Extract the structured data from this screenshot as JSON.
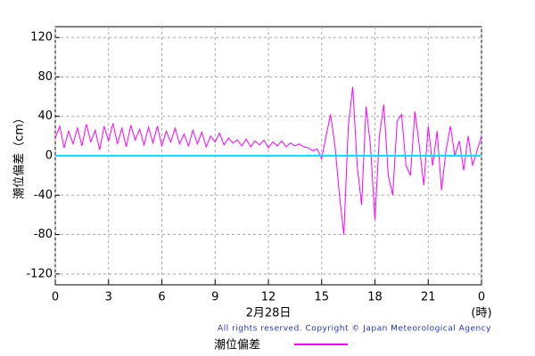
{
  "chart_data": {
    "type": "line",
    "y_label": "潮位偏差（cm）",
    "x_label": "2月28日",
    "x_unit": "(時)",
    "copyright": "All rights reserved. Copyright © Japan Meteorological Agency",
    "xlim": [
      0,
      24
    ],
    "xticks": [
      0,
      3,
      6,
      9,
      12,
      15,
      18,
      21,
      {
        "value": 24,
        "label": "0"
      }
    ],
    "ylim": [
      -131,
      131
    ],
    "yticks": [
      -120,
      -80,
      -40,
      0,
      40,
      80,
      120
    ],
    "grid": true,
    "reference_line": {
      "value": 0,
      "color": "#00e5ff"
    },
    "x": [
      0,
      0.25,
      0.5,
      0.75,
      1,
      1.25,
      1.5,
      1.75,
      2,
      2.25,
      2.5,
      2.75,
      3,
      3.25,
      3.5,
      3.75,
      4,
      4.25,
      4.5,
      4.75,
      5,
      5.25,
      5.5,
      5.75,
      6,
      6.25,
      6.5,
      6.75,
      7,
      7.25,
      7.5,
      7.75,
      8,
      8.25,
      8.5,
      8.75,
      9,
      9.25,
      9.5,
      9.75,
      10,
      10.25,
      10.5,
      10.75,
      11,
      11.25,
      11.5,
      11.75,
      12,
      12.25,
      12.5,
      12.75,
      13,
      13.25,
      13.5,
      13.75,
      14,
      14.25,
      14.5,
      14.75,
      15,
      15.25,
      15.5,
      15.75,
      16,
      16.25,
      16.5,
      16.75,
      17,
      17.25,
      17.5,
      17.75,
      18,
      18.25,
      18.5,
      18.75,
      19,
      19.25,
      19.5,
      19.75,
      20,
      20.25,
      20.5,
      20.75,
      21,
      21.25,
      21.5,
      21.75,
      22,
      22.25,
      22.5,
      22.75,
      23,
      23.25,
      23.5,
      23.75,
      24
    ],
    "series": [
      {
        "name": "潮位偏差",
        "color": "#ff00ff",
        "values": [
          18,
          30,
          8,
          25,
          12,
          28,
          10,
          32,
          14,
          26,
          6,
          30,
          15,
          33,
          12,
          28,
          9,
          31,
          16,
          27,
          11,
          29,
          13,
          30,
          10,
          25,
          14,
          28,
          12,
          22,
          10,
          26,
          12,
          24,
          9,
          20,
          14,
          23,
          11,
          18,
          13,
          16,
          10,
          17,
          9,
          15,
          11,
          16,
          8,
          14,
          10,
          15,
          9,
          13,
          10,
          12,
          9,
          8,
          5,
          7,
          -3,
          20,
          42,
          10,
          -40,
          -80,
          30,
          70,
          -10,
          -50,
          50,
          10,
          -65,
          20,
          52,
          -20,
          -40,
          35,
          42,
          -10,
          -20,
          45,
          10,
          -30,
          30,
          -10,
          25,
          -35,
          5,
          30,
          0,
          15,
          -15,
          20,
          -10,
          5,
          20
        ]
      }
    ]
  }
}
